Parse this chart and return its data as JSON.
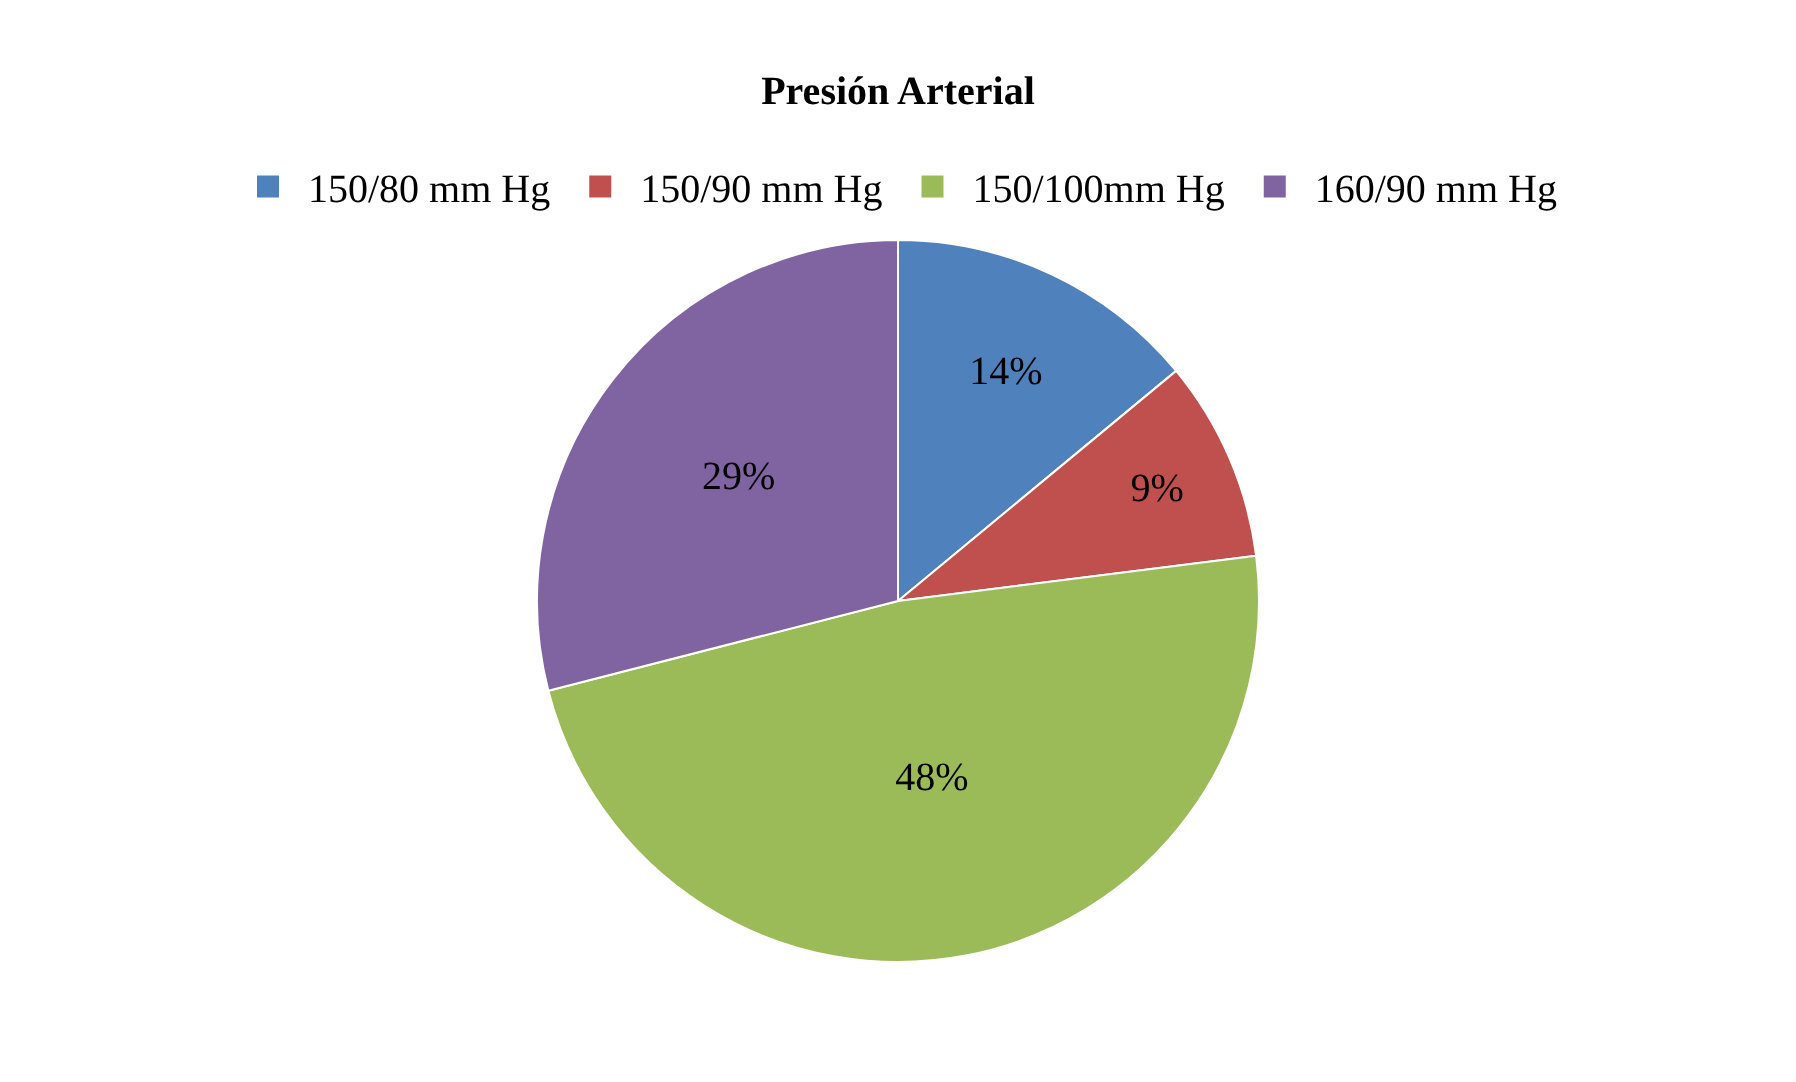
{
  "chart_data": {
    "type": "pie",
    "title": "Presión Arterial",
    "categories": [
      "150/80 mm Hg",
      "150/90 mm Hg",
      "150/100mm Hg",
      "160/90 mm Hg"
    ],
    "values": [
      14,
      9,
      48,
      29
    ],
    "colors": [
      "#4f81bd",
      "#c0504d",
      "#9bbb59",
      "#8064a2"
    ],
    "value_labels": [
      "14%",
      "9%",
      "48%",
      "29%"
    ],
    "legend": "top"
  }
}
